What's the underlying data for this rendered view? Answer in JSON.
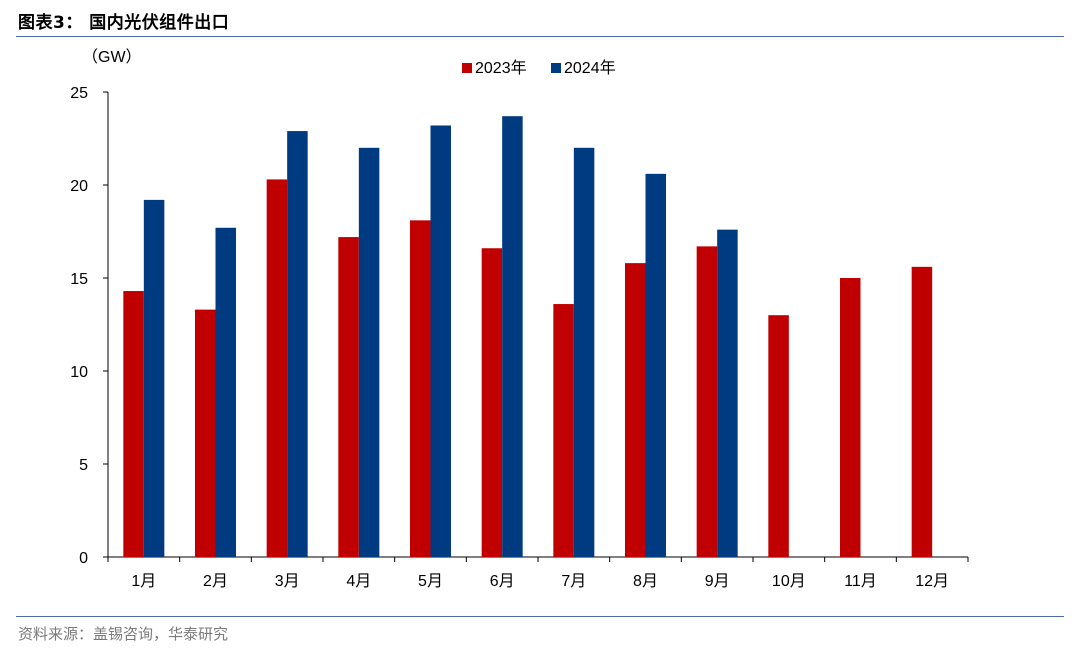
{
  "figure": {
    "title": "图表3：  国内光伏组件出口",
    "source": "资料来源：盖锡咨询，华泰研究"
  },
  "colors": {
    "series_2023": "#c00000",
    "series_2024": "#003a80",
    "rule": "#4a6aa8",
    "axis": "#000000"
  },
  "chart_data": {
    "type": "bar",
    "unit_label": "（GW）",
    "categories": [
      "1月",
      "2月",
      "3月",
      "4月",
      "5月",
      "6月",
      "7月",
      "8月",
      "9月",
      "10月",
      "11月",
      "12月"
    ],
    "series": [
      {
        "name": "2023年",
        "values": [
          14.3,
          13.3,
          20.3,
          17.2,
          18.1,
          16.6,
          13.6,
          15.8,
          16.7,
          13.0,
          15.0,
          15.6
        ]
      },
      {
        "name": "2024年",
        "values": [
          19.2,
          17.7,
          22.9,
          22.0,
          23.2,
          23.7,
          22.0,
          20.6,
          17.6,
          null,
          null,
          null
        ]
      }
    ],
    "ylim": [
      0,
      25
    ],
    "yticks": [
      0,
      5,
      10,
      15,
      20,
      25
    ],
    "legend_position": "top-center",
    "grid": false
  }
}
